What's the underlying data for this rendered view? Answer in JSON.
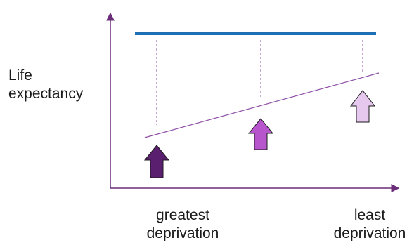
{
  "y_axis_label": {
    "line1": "Life",
    "line2": "expectancy"
  },
  "x_axis_labels": {
    "left": {
      "line1": "greatest",
      "line2": "deprivation"
    },
    "right": {
      "line1": "least",
      "line2": "deprivation"
    }
  },
  "colors": {
    "axis": "#6b2c7a",
    "target_line": "#1f6fb5",
    "gradient_line": "#8e4fa6",
    "dashed_lines": "#8e4fa6",
    "arrow_dark": "#5a1f6e",
    "arrow_mid": "#b655cc",
    "arrow_light": "#e6c7ee",
    "arrow_outline": "#1a1a1a"
  },
  "arrows": [
    {
      "name": "greatest-deprivation-arrow",
      "shade": "dark"
    },
    {
      "name": "middle-deprivation-arrow",
      "shade": "mid"
    },
    {
      "name": "least-deprivation-arrow",
      "shade": "light"
    }
  ]
}
